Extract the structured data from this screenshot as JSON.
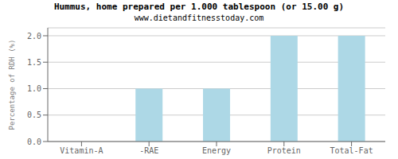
{
  "chart_data": {
    "type": "bar",
    "title": "Hummus, home prepared per 1.000 tablespoon (or 15.00 g)",
    "subtitle": "www.dietandfitnesstoday.com",
    "categories": [
      "Vitamin-A",
      "-RAE",
      "Energy",
      "Protein",
      "Total-Fat"
    ],
    "values": [
      0.0,
      1.0,
      1.0,
      2.0,
      2.0
    ],
    "color": "#add8e6",
    "ylabel": "Percentage of RDH (%)",
    "ylim": [
      0.0,
      2.15
    ],
    "yticks": [
      {
        "value": 0.0,
        "label": "0.0"
      },
      0.5,
      {
        "value": 1.0,
        "label": "1.0"
      },
      1.5,
      {
        "value": 2.0,
        "label": "2.0"
      }
    ],
    "grid": true
  }
}
